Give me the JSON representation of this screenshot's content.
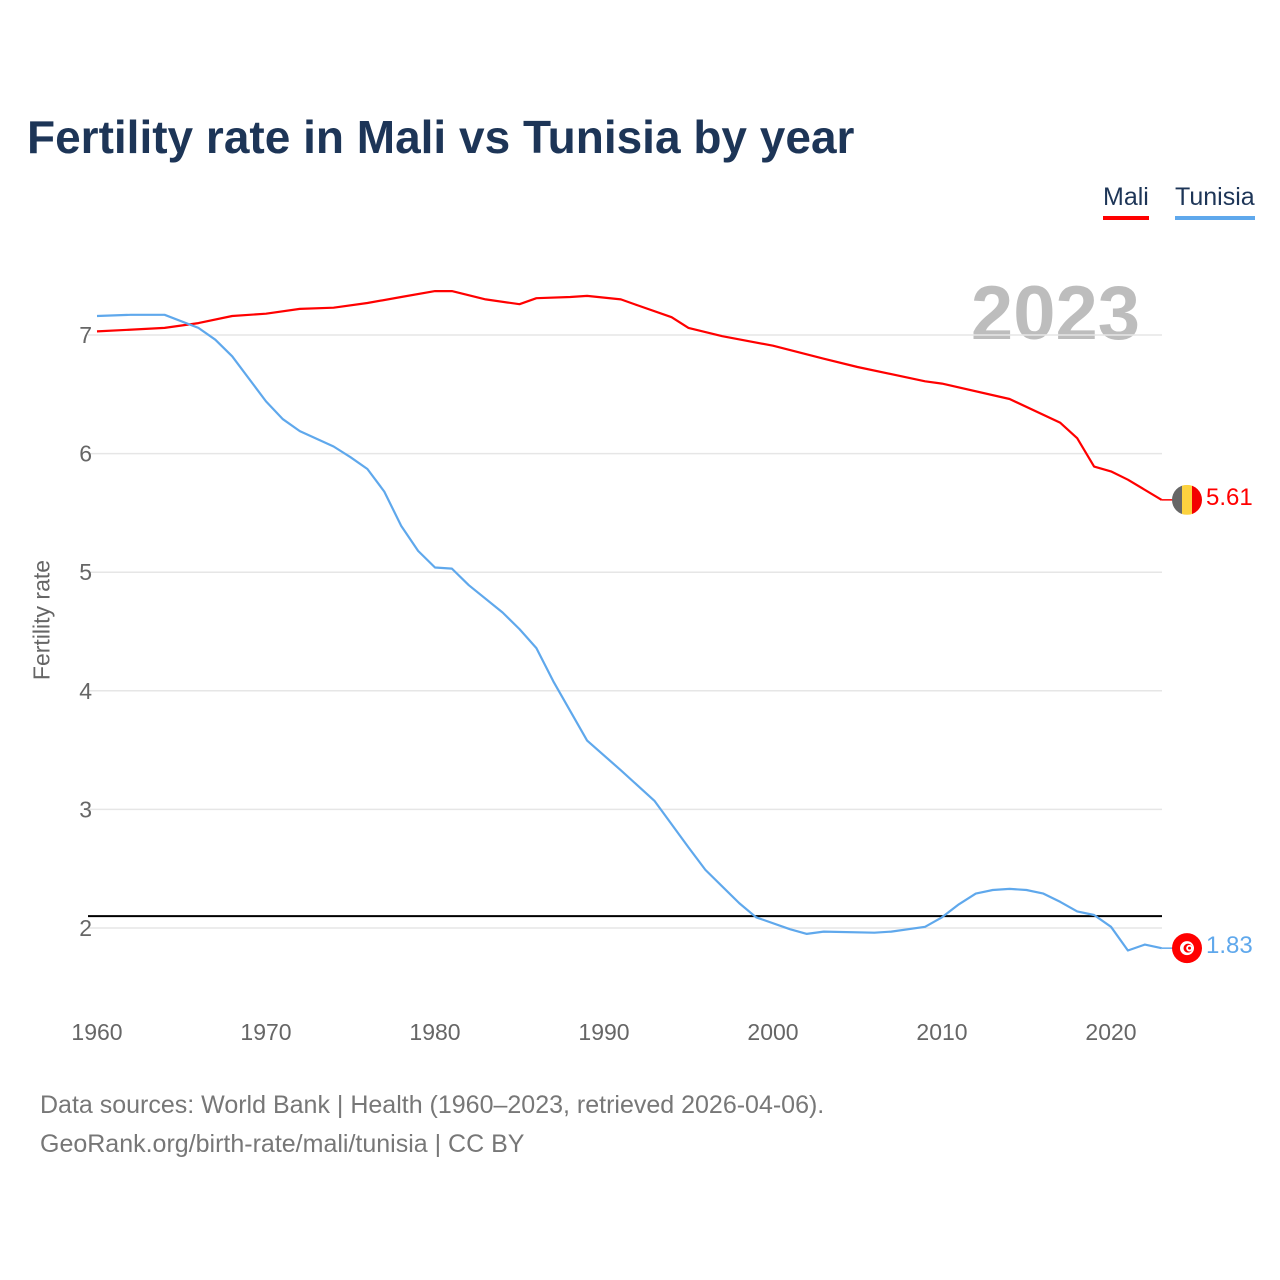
{
  "title": "Fertility rate in Mali vs Tunisia by year",
  "year_label": "2023",
  "source_line1": "Data sources: World Bank | Health (1960–2023, retrieved 2026-04-06).",
  "source_line2": "GeoRank.org/birth-rate/mali/tunisia | CC BY",
  "chart_data": {
    "type": "line",
    "title": "Fertility rate in Mali vs Tunisia by year",
    "xlabel": "",
    "ylabel": "Fertility rate",
    "xlim": [
      1960,
      2023
    ],
    "ylim": [
      1.5,
      7.6
    ],
    "x_ticks": [
      1960,
      1970,
      1980,
      1990,
      2000,
      2010,
      2020
    ],
    "y_ticks": [
      2,
      3,
      4,
      5,
      6,
      7
    ],
    "grid": true,
    "legend_position": "top-right",
    "reference_line": 2.1,
    "series": [
      {
        "name": "Mali",
        "color": "#ff0000",
        "end_label": "5.61",
        "points": [
          [
            1960,
            7.03
          ],
          [
            1964,
            7.06
          ],
          [
            1966,
            7.1
          ],
          [
            1968,
            7.16
          ],
          [
            1970,
            7.18
          ],
          [
            1972,
            7.22
          ],
          [
            1974,
            7.23
          ],
          [
            1976,
            7.27
          ],
          [
            1978,
            7.32
          ],
          [
            1980,
            7.37
          ],
          [
            1981,
            7.37
          ],
          [
            1983,
            7.3
          ],
          [
            1985,
            7.26
          ],
          [
            1986,
            7.31
          ],
          [
            1988,
            7.32
          ],
          [
            1989,
            7.33
          ],
          [
            1991,
            7.3
          ],
          [
            1992,
            7.25
          ],
          [
            1994,
            7.15
          ],
          [
            1995,
            7.06
          ],
          [
            1997,
            6.99
          ],
          [
            2000,
            6.91
          ],
          [
            2003,
            6.8
          ],
          [
            2005,
            6.73
          ],
          [
            2009,
            6.61
          ],
          [
            2010,
            6.59
          ],
          [
            2014,
            6.46
          ],
          [
            2017,
            6.26
          ],
          [
            2018,
            6.13
          ],
          [
            2019,
            5.89
          ],
          [
            2020,
            5.85
          ],
          [
            2021,
            5.78
          ],
          [
            2023,
            5.61
          ]
        ]
      },
      {
        "name": "Tunisia",
        "color": "#5fa8ec",
        "end_label": "1.83",
        "points": [
          [
            1960,
            7.16
          ],
          [
            1962,
            7.17
          ],
          [
            1964,
            7.17
          ],
          [
            1966,
            7.06
          ],
          [
            1967,
            6.96
          ],
          [
            1968,
            6.82
          ],
          [
            1970,
            6.44
          ],
          [
            1971,
            6.29
          ],
          [
            1972,
            6.19
          ],
          [
            1974,
            6.06
          ],
          [
            1975,
            5.97
          ],
          [
            1976,
            5.87
          ],
          [
            1977,
            5.68
          ],
          [
            1978,
            5.39
          ],
          [
            1979,
            5.18
          ],
          [
            1980,
            5.04
          ],
          [
            1981,
            5.03
          ],
          [
            1982,
            4.89
          ],
          [
            1984,
            4.66
          ],
          [
            1985,
            4.52
          ],
          [
            1986,
            4.36
          ],
          [
            1987,
            4.08
          ],
          [
            1989,
            3.58
          ],
          [
            1991,
            3.33
          ],
          [
            1993,
            3.07
          ],
          [
            1995,
            2.68
          ],
          [
            1996,
            2.49
          ],
          [
            1998,
            2.21
          ],
          [
            1999,
            2.09
          ],
          [
            2001,
            1.99
          ],
          [
            2002,
            1.95
          ],
          [
            2003,
            1.97
          ],
          [
            2006,
            1.96
          ],
          [
            2007,
            1.97
          ],
          [
            2009,
            2.01
          ],
          [
            2010,
            2.09
          ],
          [
            2011,
            2.2
          ],
          [
            2012,
            2.29
          ],
          [
            2013,
            2.32
          ],
          [
            2014,
            2.33
          ],
          [
            2015,
            2.32
          ],
          [
            2016,
            2.29
          ],
          [
            2017,
            2.22
          ],
          [
            2018,
            2.14
          ],
          [
            2019,
            2.11
          ],
          [
            2020,
            2.01
          ],
          [
            2021,
            1.81
          ],
          [
            2022,
            1.86
          ],
          [
            2023,
            1.83
          ]
        ]
      }
    ]
  }
}
